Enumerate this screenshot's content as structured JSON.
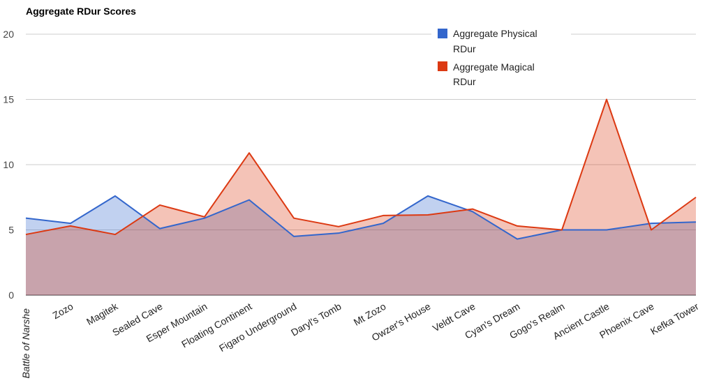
{
  "chart_data": {
    "type": "area",
    "title": "Aggregate RDur Scores",
    "xlabel": "",
    "ylabel": "",
    "ylim": [
      0,
      20
    ],
    "yticks": [
      0,
      5,
      10,
      15,
      20
    ],
    "grid": true,
    "legend_position": "top-right",
    "categories": [
      "Battle of Narshe",
      "Zozo",
      "Magitek",
      "Sealed Cave",
      "Esper Mountain",
      "Floating Continent",
      "Figaro Underground",
      "Daryl's Tomb",
      "Mt Zozo",
      "Owzer's House",
      "Veldt Cave",
      "Cyan's Dream",
      "Gogo's Realm",
      "Ancient Castle",
      "Phoenix Cave",
      "Kefka Tower"
    ],
    "series": [
      {
        "name": "Aggregate Physical RDur",
        "legend_lines": [
          "Aggregate Physical",
          "RDur"
        ],
        "color": "#3366cc",
        "values": [
          5.9,
          5.5,
          7.6,
          5.1,
          5.9,
          7.3,
          4.5,
          4.75,
          5.5,
          7.6,
          6.4,
          4.3,
          5.0,
          5.0,
          5.5,
          5.6
        ]
      },
      {
        "name": "Aggregate Magical RDur",
        "legend_lines": [
          "Aggregate Magical",
          "RDur"
        ],
        "color": "#dc3912",
        "values": [
          4.65,
          5.3,
          4.65,
          6.9,
          6.0,
          10.9,
          5.9,
          5.25,
          6.1,
          6.15,
          6.6,
          5.3,
          5.0,
          15.0,
          5.0,
          7.5
        ]
      }
    ]
  }
}
